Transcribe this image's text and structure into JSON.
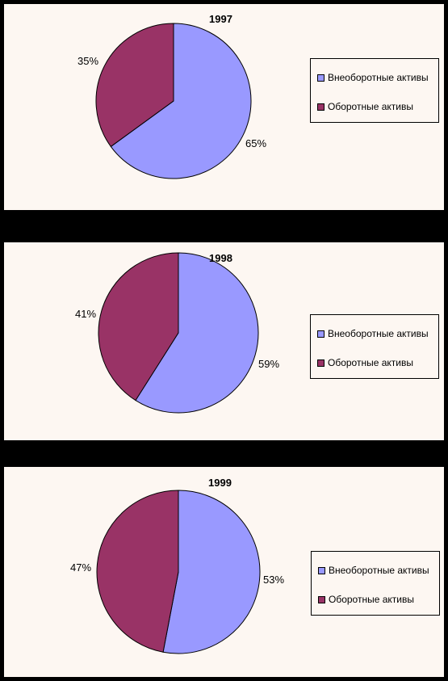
{
  "colors": {
    "noncurrent": "#9999ff",
    "current": "#993366",
    "panel_bg": "#fdf7f2",
    "frame": "#000000"
  },
  "chart_data": [
    {
      "type": "pie",
      "title": "1997",
      "categories": [
        "Внеоборотные активы",
        "Оборотные активы"
      ],
      "values": [
        65,
        35
      ],
      "data_labels": [
        "65%",
        "35%"
      ],
      "legend_position": "right"
    },
    {
      "type": "pie",
      "title": "1998",
      "categories": [
        "Внеоборотные активы",
        "Оборотные активы"
      ],
      "values": [
        59,
        41
      ],
      "data_labels": [
        "59%",
        "41%"
      ],
      "legend_position": "right"
    },
    {
      "type": "pie",
      "title": "1999",
      "categories": [
        "Внеоборотные активы",
        "Оборотные активы"
      ],
      "values": [
        53,
        47
      ],
      "data_labels": [
        "53%",
        "47%"
      ],
      "legend_position": "right"
    }
  ]
}
